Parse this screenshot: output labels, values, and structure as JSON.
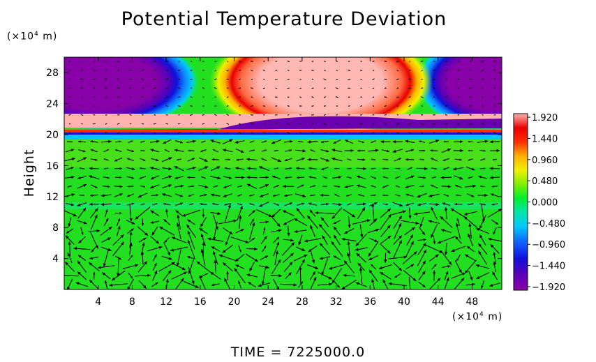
{
  "chart_data": {
    "type": "heatmap",
    "title": "Potential Temperature Deviation",
    "ylabel": "Height",
    "y_unit_prefix": "(×10",
    "y_unit_exp": "4",
    "y_unit_suffix": " m)",
    "x_unit_prefix": "(×10",
    "x_unit_exp": "4",
    "x_unit_suffix": " m)",
    "xlim": [
      0,
      51.5
    ],
    "ylim": [
      0,
      30
    ],
    "x_ticks": [
      4,
      8,
      12,
      16,
      20,
      24,
      28,
      32,
      36,
      40,
      44,
      48
    ],
    "y_ticks": [
      4,
      8,
      12,
      16,
      20,
      24,
      28
    ],
    "colorbar": {
      "min": -2.0,
      "max": 2.0,
      "labels": [
        "1.920",
        "1.440",
        "0.960",
        "0.480",
        "0.000",
        "−0.480",
        "−0.960",
        "−1.440",
        "−1.920"
      ],
      "label_values": [
        1.92,
        1.44,
        0.96,
        0.48,
        0.0,
        -0.48,
        -0.96,
        -1.44,
        -1.92
      ]
    },
    "features": [
      {
        "name": "cold-cell-left",
        "x": 6,
        "y": 26.5,
        "value": -2.0
      },
      {
        "name": "warm-cell-center",
        "x": 29,
        "y": 26.5,
        "value": 2.0
      },
      {
        "name": "cold-cell-right",
        "x": 50,
        "y": 26.5,
        "value": -2.0
      },
      {
        "name": "warm-layer",
        "x": 26,
        "y": 21.5,
        "value": 1.6
      },
      {
        "name": "cold-layer",
        "x": 30,
        "y": 20.5,
        "value": -1.6
      }
    ],
    "background_value": 0.2,
    "vector_field": "wind vectors over the domain"
  },
  "footer": {
    "time": "TIME = 7225000.0"
  }
}
